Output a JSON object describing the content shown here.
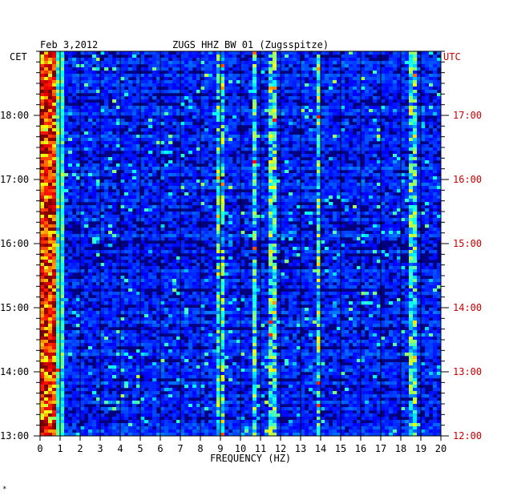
{
  "header": {
    "date": "Feb 3,2012",
    "station": "ZUGS HHZ BW 01 (Zugsspitze)"
  },
  "timezones": {
    "left": "CET",
    "right": "UTC"
  },
  "colors": {
    "left_axis": "#000000",
    "right_axis": "#cc0000",
    "background": "#000080",
    "gridline": "#000000"
  },
  "chart_data": {
    "type": "heatmap",
    "title": "ZUGS HHZ BW 01 (Zugsspitze)",
    "subtitle": "Feb 3,2012",
    "xlabel": "FREQUENCY (HZ)",
    "xlim": [
      0,
      20
    ],
    "x_ticks": [
      "0",
      "1",
      "2",
      "3",
      "4",
      "5",
      "6",
      "7",
      "8",
      "9",
      "10",
      "11",
      "12",
      "13",
      "14",
      "15",
      "16",
      "17",
      "18",
      "19",
      "20"
    ],
    "y_left_label": "CET",
    "y_left_ticks": [
      "18:00",
      "17:00",
      "16:00",
      "15:00",
      "14:00",
      "13:00"
    ],
    "y_right_label": "UTC",
    "y_right_ticks": [
      "17:00",
      "16:00",
      "15:00",
      "14:00",
      "13:00",
      "12:00"
    ],
    "time_range_cet": [
      "13:00",
      "19:00"
    ],
    "colormap": "jet",
    "features": [
      {
        "freq": 0.4,
        "desc": "strong low-frequency energy"
      },
      {
        "freq": 9.0,
        "desc": "narrow line"
      },
      {
        "freq": 10.7,
        "desc": "narrow line"
      },
      {
        "freq": 11.6,
        "desc": "narrow line"
      },
      {
        "freq": 13.9,
        "desc": "narrow line"
      },
      {
        "freq": 18.6,
        "desc": "intermittent bursts"
      }
    ]
  },
  "footer_mark": "*"
}
